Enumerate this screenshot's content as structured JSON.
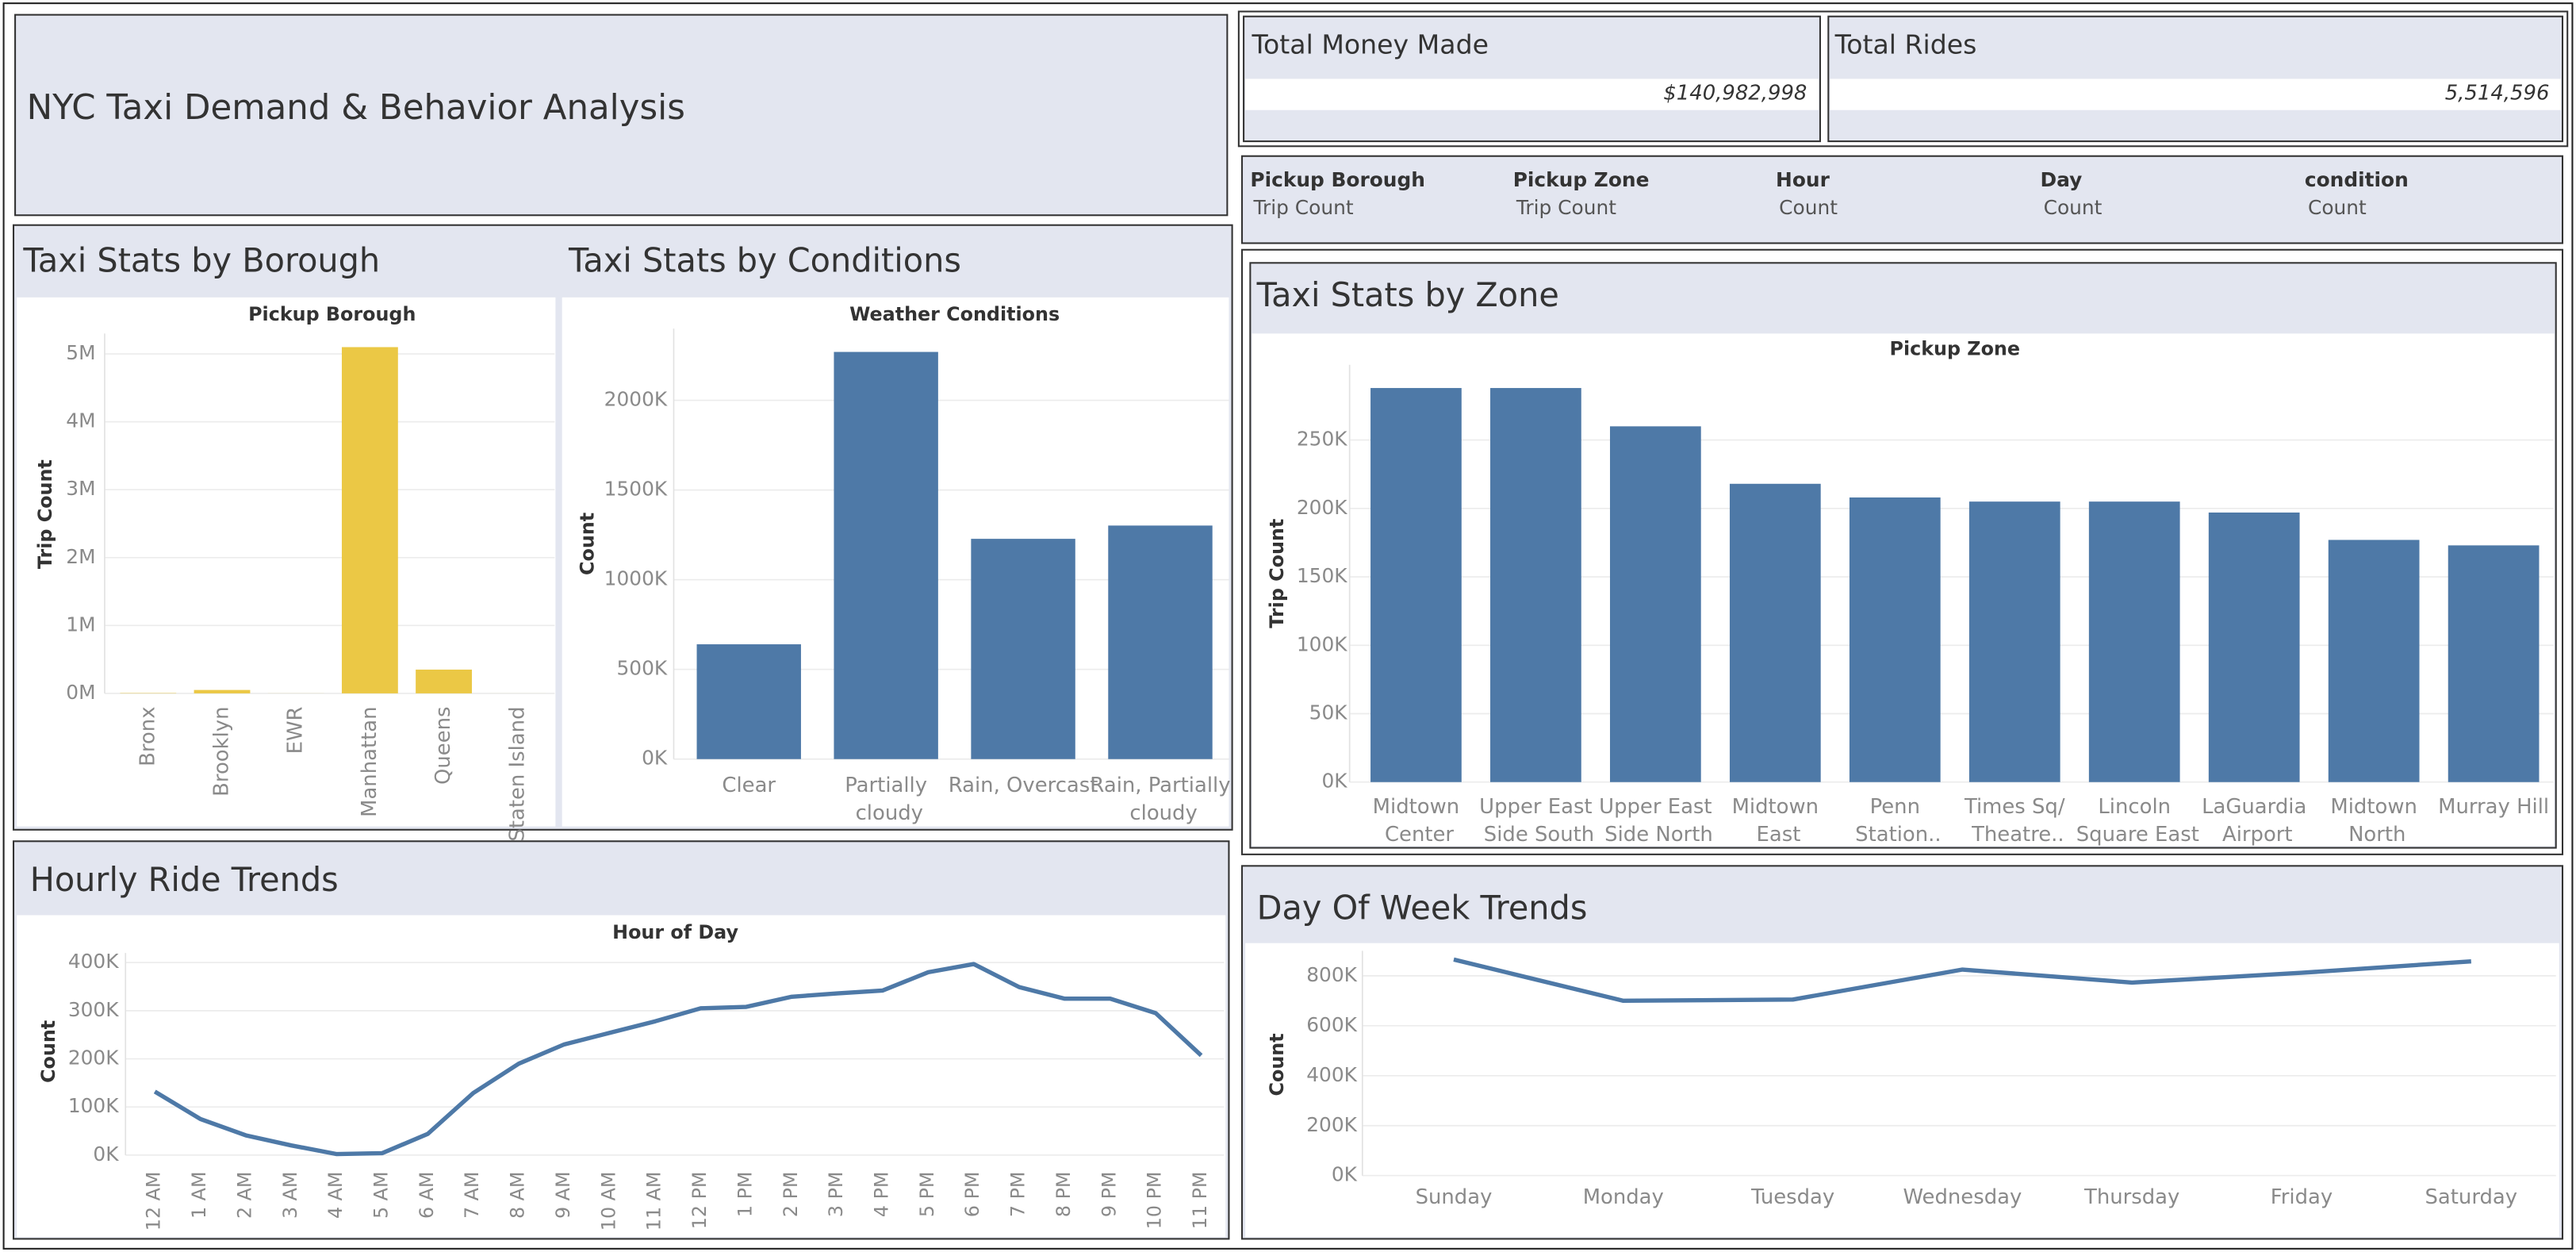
{
  "title": "NYC Taxi Demand & Behavior Analysis",
  "kpis": [
    {
      "label": "Total Money Made",
      "value": "$140,982,998"
    },
    {
      "label": "Total Rides",
      "value": "5,514,596"
    }
  ],
  "fields": [
    {
      "name": "Pickup Borough",
      "measure": "Trip Count"
    },
    {
      "name": "Pickup Zone",
      "measure": "Trip Count"
    },
    {
      "name": "Hour",
      "measure": "Count"
    },
    {
      "name": "Day",
      "measure": "Count"
    },
    {
      "name": "condition",
      "measure": "Count"
    }
  ],
  "chart_data": [
    {
      "type": "bar",
      "title": "Taxi Stats by Borough",
      "subtitle": "Pickup Borough",
      "y_label": "Trip Count",
      "categories": [
        "Bronx",
        "Brooklyn",
        "EWR",
        "Manhattan",
        "Queens",
        "Staten Island"
      ],
      "values": [
        5000,
        50000,
        1000,
        5100000,
        350000,
        500
      ],
      "color": "#ebc845",
      "ylim": [
        0,
        5300000
      ],
      "yticks": [
        {
          "value": 0,
          "label": "0M"
        },
        {
          "value": 1000000,
          "label": "1M"
        },
        {
          "value": 2000000,
          "label": "2M"
        },
        {
          "value": 3000000,
          "label": "3M"
        },
        {
          "value": 4000000,
          "label": "4M"
        },
        {
          "value": 5000000,
          "label": "5M"
        }
      ],
      "grid": true
    },
    {
      "type": "bar",
      "title": "Taxi Stats by Conditions",
      "subtitle": "Weather Conditions",
      "y_label": "Count",
      "categories": [
        "Clear",
        "Partially cloudy",
        "Rain, Overcast",
        "Rain, Partially cloudy"
      ],
      "values": [
        640000,
        2270000,
        1228000,
        1302000
      ],
      "color": "#4e79a7",
      "ylim": [
        0,
        2400000
      ],
      "yticks": [
        {
          "value": 0,
          "label": "0K"
        },
        {
          "value": 500000,
          "label": "500K"
        },
        {
          "value": 1000000,
          "label": "1000K"
        },
        {
          "value": 1500000,
          "label": "1500K"
        },
        {
          "value": 2000000,
          "label": "2000K"
        }
      ],
      "grid": true
    },
    {
      "type": "bar",
      "title": "Taxi Stats by Zone",
      "subtitle": "Pickup Zone",
      "y_label": "Trip Count",
      "categories": [
        "Midtown Center",
        "Upper East Side South",
        "Upper East Side North",
        "Midtown East",
        "Penn Station..",
        "Times Sq/ Theatre..",
        "Lincoln Square East",
        "LaGuardia Airport",
        "Midtown North",
        "Murray Hill"
      ],
      "values": [
        288000,
        288000,
        260000,
        218000,
        208000,
        205000,
        205000,
        197000,
        177000,
        173000
      ],
      "color": "#4e79a7",
      "ylim": [
        0,
        305000
      ],
      "yticks": [
        {
          "value": 0,
          "label": "0K"
        },
        {
          "value": 50000,
          "label": "50K"
        },
        {
          "value": 100000,
          "label": "100K"
        },
        {
          "value": 150000,
          "label": "150K"
        },
        {
          "value": 200000,
          "label": "200K"
        },
        {
          "value": 250000,
          "label": "250K"
        }
      ],
      "grid": true
    },
    {
      "type": "line",
      "title": "Hourly Ride Trends",
      "subtitle": "Hour of Day",
      "y_label": "Count",
      "categories": [
        "12 AM",
        "1 AM",
        "2 AM",
        "3 AM",
        "4 AM",
        "5 AM",
        "6 AM",
        "7 AM",
        "8 AM",
        "9 AM",
        "10 AM",
        "11 AM",
        "12 PM",
        "1 PM",
        "2 PM",
        "3 PM",
        "4 PM",
        "5 PM",
        "6 PM",
        "7 PM",
        "8 PM",
        "9 PM",
        "10 PM",
        "11 PM"
      ],
      "values": [
        132000,
        75000,
        41000,
        20000,
        2000,
        4000,
        44000,
        129000,
        190000,
        230000,
        254000,
        278000,
        305000,
        308000,
        329000,
        336000,
        342000,
        380000,
        397000,
        349000,
        325000,
        325000,
        295000,
        207000
      ],
      "color": "#4e79a7",
      "ylim": [
        0,
        420000
      ],
      "yticks": [
        {
          "value": 0,
          "label": "0K"
        },
        {
          "value": 100000,
          "label": "100K"
        },
        {
          "value": 200000,
          "label": "200K"
        },
        {
          "value": 300000,
          "label": "300K"
        },
        {
          "value": 400000,
          "label": "400K"
        }
      ],
      "grid": true
    },
    {
      "type": "line",
      "title": "Day Of Week Trends",
      "y_label": "Count",
      "categories": [
        "Sunday",
        "Monday",
        "Tuesday",
        "Wednesday",
        "Thursday",
        "Friday",
        "Saturday"
      ],
      "values": [
        865000,
        700000,
        705000,
        825000,
        773000,
        812000,
        858000
      ],
      "color": "#4e79a7",
      "ylim": [
        0,
        900000
      ],
      "yticks": [
        {
          "value": 0,
          "label": "0K"
        },
        {
          "value": 200000,
          "label": "200K"
        },
        {
          "value": 400000,
          "label": "400K"
        },
        {
          "value": 600000,
          "label": "600K"
        },
        {
          "value": 800000,
          "label": "800K"
        }
      ],
      "grid": true
    }
  ]
}
